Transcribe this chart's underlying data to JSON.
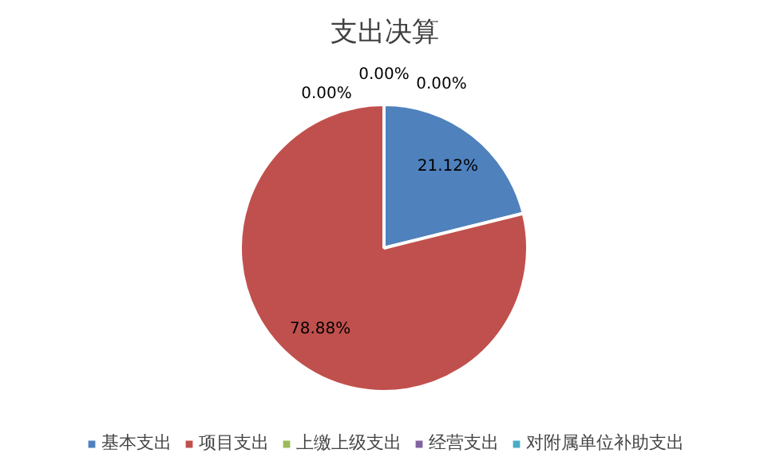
{
  "chart_data": {
    "type": "pie",
    "title": "支出决算",
    "categories": [
      "基本支出",
      "项目支出",
      "上缴上级支出",
      "经营支出",
      "对附属单位补助支出"
    ],
    "values": [
      21.12,
      78.88,
      0,
      0,
      0
    ],
    "colors": [
      "#4f81bd",
      "#c0504d",
      "#9bbb59",
      "#8064a2",
      "#4bacc6"
    ],
    "value_labels": [
      "21.12%",
      "78.88%",
      "0.00%",
      "0.00%",
      "0.00%"
    ],
    "legend": "bottom"
  }
}
